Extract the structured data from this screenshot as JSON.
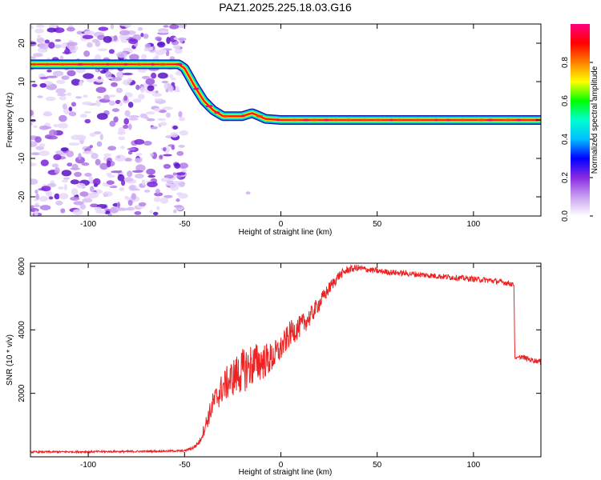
{
  "title": "PAZ1.2025.225.18.03.G16",
  "chart_data": [
    {
      "type": "heatmap",
      "xlabel": "Height of straight line (km)",
      "ylabel": "Frequency (Hz)",
      "xlim": [
        -130,
        135
      ],
      "ylim": [
        -25,
        25
      ],
      "xticks": [
        -100,
        -50,
        0,
        50,
        100
      ],
      "yticks": [
        20,
        10,
        0,
        -10,
        -20
      ],
      "colorbar": {
        "label": "Normalized spectral amplitude",
        "range": [
          0.0,
          1.0
        ],
        "ticks": [
          "0.0",
          "0.2",
          "0.4",
          "0.6",
          "0.8"
        ],
        "colors": [
          "#ffffff",
          "#c8a0f0",
          "#8a2be2",
          "#0000ff",
          "#00bfff",
          "#00ffd0",
          "#00ff00",
          "#ffff00",
          "#ff8000",
          "#ff0000",
          "#ff0080"
        ]
      },
      "ridge": {
        "x": [
          -130,
          -100,
          -80,
          -60,
          -53,
          -50,
          -45,
          -40,
          -35,
          -30,
          -25,
          -20,
          -15,
          -12,
          -8,
          0,
          10,
          20,
          50,
          100,
          135
        ],
        "y": [
          14.5,
          14.5,
          14.5,
          14.5,
          14.5,
          13.5,
          9,
          5,
          2.5,
          1,
          1,
          1,
          1.8,
          1.2,
          0.3,
          0,
          0,
          0,
          0,
          0,
          0
        ]
      },
      "noise_region_x": [
        -130,
        -50
      ]
    },
    {
      "type": "line",
      "xlabel": "Height of straight line (km)",
      "ylabel": "SNR (10 * v/v)",
      "xlim": [
        -130,
        135
      ],
      "ylim": [
        0,
        6100
      ],
      "xticks": [
        -100,
        -50,
        0,
        50,
        100
      ],
      "yticks": [
        2000,
        4000,
        6000
      ],
      "color": "#ee2222",
      "x": [
        -130,
        -100,
        -70,
        -50,
        -45,
        -42,
        -40,
        -35,
        -30,
        -25,
        -20,
        -15,
        -10,
        -5,
        0,
        5,
        10,
        15,
        20,
        25,
        30,
        35,
        40,
        45,
        50,
        60,
        70,
        80,
        90,
        100,
        110,
        115,
        120,
        121,
        121.5,
        125,
        130,
        135
      ],
      "values": [
        150,
        160,
        170,
        190,
        300,
        500,
        850,
        1700,
        2200,
        2500,
        2700,
        2900,
        3000,
        3100,
        3400,
        3900,
        4100,
        4400,
        4850,
        5300,
        5700,
        5900,
        5950,
        5900,
        5850,
        5800,
        5750,
        5700,
        5650,
        5600,
        5550,
        5500,
        5450,
        5400,
        3100,
        3150,
        3050,
        3000
      ],
      "noise_amplitude": [
        30,
        30,
        30,
        30,
        60,
        100,
        200,
        400,
        500,
        600,
        700,
        700,
        600,
        500,
        400,
        400,
        350,
        300,
        250,
        200,
        150,
        120,
        110,
        100,
        90,
        90,
        90,
        90,
        90,
        90,
        90,
        90,
        90,
        0,
        0,
        80,
        80,
        80
      ]
    }
  ]
}
